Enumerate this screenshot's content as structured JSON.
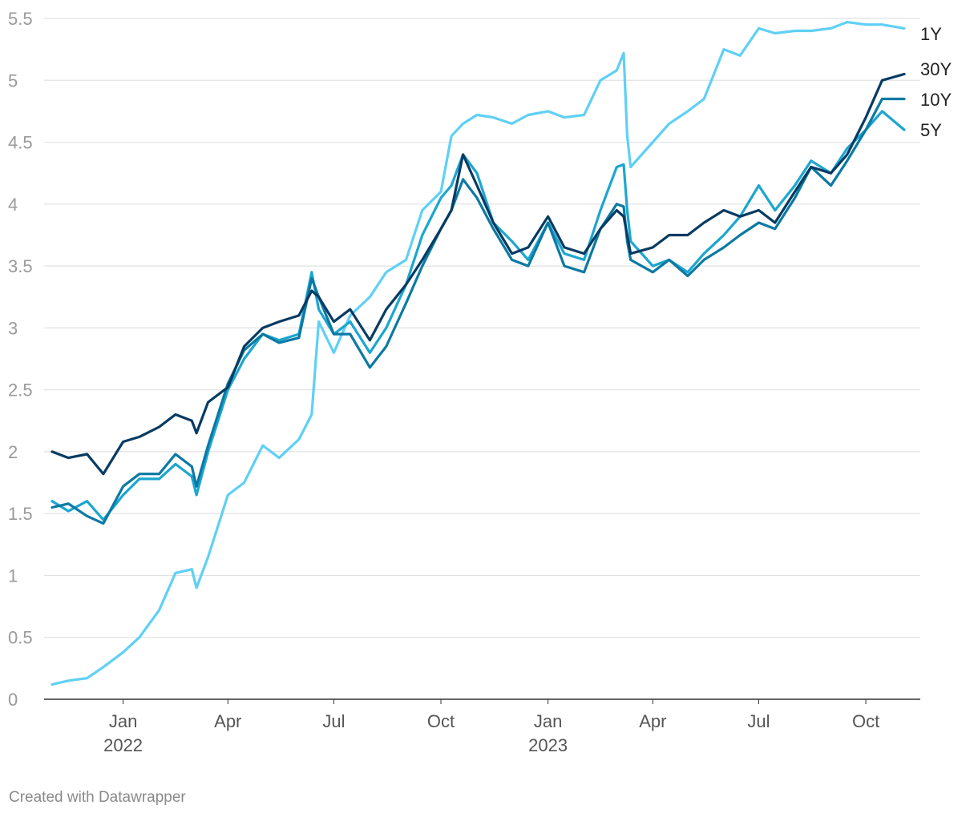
{
  "footer": "Created with Datawrapper",
  "chart_data": {
    "type": "line",
    "title": "",
    "xlabel": "",
    "ylabel": "",
    "xlim": [
      "2021-11-01",
      "2023-11-03"
    ],
    "ylim": [
      0,
      5.5
    ],
    "y_ticks": [
      {
        "value": 0,
        "label": "0"
      },
      {
        "value": 0.5,
        "label": "0.5"
      },
      {
        "value": 1,
        "label": "1"
      },
      {
        "value": 1.5,
        "label": "1.5"
      },
      {
        "value": 2,
        "label": "2"
      },
      {
        "value": 2.5,
        "label": "2.5"
      },
      {
        "value": 3,
        "label": "3"
      },
      {
        "value": 3.5,
        "label": "3.5"
      },
      {
        "value": 4,
        "label": "4"
      },
      {
        "value": 4.5,
        "label": "4.5"
      },
      {
        "value": 5,
        "label": "5"
      },
      {
        "value": 5.5,
        "label": "5.5"
      }
    ],
    "x_ticks": [
      {
        "date": "2022-01-01",
        "label": "Jan",
        "sublabel": "2022"
      },
      {
        "date": "2022-04-01",
        "label": "Apr",
        "sublabel": ""
      },
      {
        "date": "2022-07-01",
        "label": "Jul",
        "sublabel": ""
      },
      {
        "date": "2022-10-01",
        "label": "Oct",
        "sublabel": ""
      },
      {
        "date": "2023-01-01",
        "label": "Jan",
        "sublabel": "2023"
      },
      {
        "date": "2023-04-01",
        "label": "Apr",
        "sublabel": ""
      },
      {
        "date": "2023-07-01",
        "label": "Jul",
        "sublabel": ""
      },
      {
        "date": "2023-10-01",
        "label": "Oct",
        "sublabel": ""
      }
    ],
    "grid": true,
    "legend": "direct labels at right end of lines",
    "series": [
      {
        "name": "1Y",
        "color": "#5fd0f5",
        "points": [
          [
            "2021-11-01",
            0.12
          ],
          [
            "2021-11-15",
            0.15
          ],
          [
            "2021-12-01",
            0.17
          ],
          [
            "2021-12-15",
            0.26
          ],
          [
            "2022-01-01",
            0.38
          ],
          [
            "2022-01-15",
            0.5
          ],
          [
            "2022-02-01",
            0.72
          ],
          [
            "2022-02-15",
            1.02
          ],
          [
            "2022-03-01",
            1.05
          ],
          [
            "2022-03-05",
            0.9
          ],
          [
            "2022-03-15",
            1.15
          ],
          [
            "2022-04-01",
            1.65
          ],
          [
            "2022-04-15",
            1.75
          ],
          [
            "2022-05-01",
            2.05
          ],
          [
            "2022-05-15",
            1.95
          ],
          [
            "2022-06-01",
            2.1
          ],
          [
            "2022-06-12",
            2.3
          ],
          [
            "2022-06-18",
            3.05
          ],
          [
            "2022-07-01",
            2.8
          ],
          [
            "2022-07-15",
            3.1
          ],
          [
            "2022-08-01",
            3.25
          ],
          [
            "2022-08-15",
            3.45
          ],
          [
            "2022-09-01",
            3.55
          ],
          [
            "2022-09-15",
            3.95
          ],
          [
            "2022-10-01",
            4.1
          ],
          [
            "2022-10-10",
            4.55
          ],
          [
            "2022-10-20",
            4.65
          ],
          [
            "2022-11-01",
            4.72
          ],
          [
            "2022-11-15",
            4.7
          ],
          [
            "2022-12-01",
            4.65
          ],
          [
            "2022-12-15",
            4.72
          ],
          [
            "2023-01-01",
            4.75
          ],
          [
            "2023-01-15",
            4.7
          ],
          [
            "2023-02-01",
            4.72
          ],
          [
            "2023-02-15",
            5.0
          ],
          [
            "2023-03-01",
            5.08
          ],
          [
            "2023-03-07",
            5.22
          ],
          [
            "2023-03-10",
            4.55
          ],
          [
            "2023-03-13",
            4.3
          ],
          [
            "2023-04-01",
            4.5
          ],
          [
            "2023-04-15",
            4.65
          ],
          [
            "2023-05-01",
            4.75
          ],
          [
            "2023-05-15",
            4.85
          ],
          [
            "2023-06-01",
            5.25
          ],
          [
            "2023-06-15",
            5.2
          ],
          [
            "2023-07-01",
            5.42
          ],
          [
            "2023-07-15",
            5.38
          ],
          [
            "2023-08-01",
            5.4
          ],
          [
            "2023-08-15",
            5.4
          ],
          [
            "2023-09-01",
            5.42
          ],
          [
            "2023-09-15",
            5.47
          ],
          [
            "2023-10-01",
            5.45
          ],
          [
            "2023-10-15",
            5.45
          ],
          [
            "2023-11-03",
            5.42
          ]
        ]
      },
      {
        "name": "5Y",
        "color": "#1ca6d0",
        "points": [
          [
            "2021-11-01",
            1.6
          ],
          [
            "2021-11-15",
            1.52
          ],
          [
            "2021-12-01",
            1.6
          ],
          [
            "2021-12-15",
            1.45
          ],
          [
            "2022-01-01",
            1.65
          ],
          [
            "2022-01-15",
            1.78
          ],
          [
            "2022-02-01",
            1.78
          ],
          [
            "2022-02-15",
            1.9
          ],
          [
            "2022-03-01",
            1.8
          ],
          [
            "2022-03-05",
            1.65
          ],
          [
            "2022-03-15",
            2.0
          ],
          [
            "2022-04-01",
            2.5
          ],
          [
            "2022-04-15",
            2.75
          ],
          [
            "2022-05-01",
            2.95
          ],
          [
            "2022-05-15",
            2.9
          ],
          [
            "2022-06-01",
            2.95
          ],
          [
            "2022-06-12",
            3.45
          ],
          [
            "2022-06-18",
            3.15
          ],
          [
            "2022-07-01",
            2.95
          ],
          [
            "2022-07-15",
            3.05
          ],
          [
            "2022-08-01",
            2.8
          ],
          [
            "2022-08-15",
            3.0
          ],
          [
            "2022-09-01",
            3.35
          ],
          [
            "2022-09-15",
            3.75
          ],
          [
            "2022-10-01",
            4.05
          ],
          [
            "2022-10-10",
            4.15
          ],
          [
            "2022-10-20",
            4.4
          ],
          [
            "2022-11-01",
            4.25
          ],
          [
            "2022-11-15",
            3.85
          ],
          [
            "2022-12-01",
            3.7
          ],
          [
            "2022-12-15",
            3.55
          ],
          [
            "2023-01-01",
            3.85
          ],
          [
            "2023-01-15",
            3.6
          ],
          [
            "2023-02-01",
            3.55
          ],
          [
            "2023-02-15",
            3.95
          ],
          [
            "2023-03-01",
            4.3
          ],
          [
            "2023-03-07",
            4.32
          ],
          [
            "2023-03-10",
            3.95
          ],
          [
            "2023-03-13",
            3.7
          ],
          [
            "2023-04-01",
            3.5
          ],
          [
            "2023-04-15",
            3.55
          ],
          [
            "2023-05-01",
            3.45
          ],
          [
            "2023-05-15",
            3.6
          ],
          [
            "2023-06-01",
            3.75
          ],
          [
            "2023-06-15",
            3.9
          ],
          [
            "2023-07-01",
            4.15
          ],
          [
            "2023-07-15",
            3.95
          ],
          [
            "2023-08-01",
            4.15
          ],
          [
            "2023-08-15",
            4.35
          ],
          [
            "2023-09-01",
            4.25
          ],
          [
            "2023-09-15",
            4.45
          ],
          [
            "2023-10-01",
            4.6
          ],
          [
            "2023-10-15",
            4.75
          ],
          [
            "2023-11-03",
            4.6
          ]
        ]
      },
      {
        "name": "10Y",
        "color": "#0b7aa3",
        "points": [
          [
            "2021-11-01",
            1.55
          ],
          [
            "2021-11-15",
            1.58
          ],
          [
            "2021-12-01",
            1.48
          ],
          [
            "2021-12-15",
            1.42
          ],
          [
            "2022-01-01",
            1.72
          ],
          [
            "2022-01-15",
            1.82
          ],
          [
            "2022-02-01",
            1.82
          ],
          [
            "2022-02-15",
            1.98
          ],
          [
            "2022-03-01",
            1.88
          ],
          [
            "2022-03-05",
            1.72
          ],
          [
            "2022-03-15",
            2.05
          ],
          [
            "2022-04-01",
            2.55
          ],
          [
            "2022-04-15",
            2.82
          ],
          [
            "2022-05-01",
            2.95
          ],
          [
            "2022-05-15",
            2.88
          ],
          [
            "2022-06-01",
            2.92
          ],
          [
            "2022-06-12",
            3.4
          ],
          [
            "2022-06-18",
            3.25
          ],
          [
            "2022-07-01",
            2.95
          ],
          [
            "2022-07-15",
            2.95
          ],
          [
            "2022-08-01",
            2.68
          ],
          [
            "2022-08-15",
            2.85
          ],
          [
            "2022-09-01",
            3.2
          ],
          [
            "2022-09-15",
            3.5
          ],
          [
            "2022-10-01",
            3.8
          ],
          [
            "2022-10-10",
            3.95
          ],
          [
            "2022-10-20",
            4.2
          ],
          [
            "2022-11-01",
            4.05
          ],
          [
            "2022-11-15",
            3.8
          ],
          [
            "2022-12-01",
            3.55
          ],
          [
            "2022-12-15",
            3.5
          ],
          [
            "2023-01-01",
            3.85
          ],
          [
            "2023-01-15",
            3.5
          ],
          [
            "2023-02-01",
            3.45
          ],
          [
            "2023-02-15",
            3.8
          ],
          [
            "2023-03-01",
            4.0
          ],
          [
            "2023-03-07",
            3.98
          ],
          [
            "2023-03-10",
            3.7
          ],
          [
            "2023-03-13",
            3.55
          ],
          [
            "2023-04-01",
            3.45
          ],
          [
            "2023-04-15",
            3.55
          ],
          [
            "2023-05-01",
            3.42
          ],
          [
            "2023-05-15",
            3.55
          ],
          [
            "2023-06-01",
            3.65
          ],
          [
            "2023-06-15",
            3.75
          ],
          [
            "2023-07-01",
            3.85
          ],
          [
            "2023-07-15",
            3.8
          ],
          [
            "2023-08-01",
            4.05
          ],
          [
            "2023-08-15",
            4.3
          ],
          [
            "2023-09-01",
            4.15
          ],
          [
            "2023-09-15",
            4.35
          ],
          [
            "2023-10-01",
            4.6
          ],
          [
            "2023-10-15",
            4.85
          ],
          [
            "2023-11-03",
            4.85
          ]
        ]
      },
      {
        "name": "30Y",
        "color": "#073b63",
        "points": [
          [
            "2021-11-01",
            2.0
          ],
          [
            "2021-11-15",
            1.95
          ],
          [
            "2021-12-01",
            1.98
          ],
          [
            "2021-12-15",
            1.82
          ],
          [
            "2022-01-01",
            2.08
          ],
          [
            "2022-01-15",
            2.12
          ],
          [
            "2022-02-01",
            2.2
          ],
          [
            "2022-02-15",
            2.3
          ],
          [
            "2022-03-01",
            2.25
          ],
          [
            "2022-03-05",
            2.15
          ],
          [
            "2022-03-15",
            2.4
          ],
          [
            "2022-04-01",
            2.52
          ],
          [
            "2022-04-15",
            2.85
          ],
          [
            "2022-05-01",
            3.0
          ],
          [
            "2022-05-15",
            3.05
          ],
          [
            "2022-06-01",
            3.1
          ],
          [
            "2022-06-12",
            3.3
          ],
          [
            "2022-06-18",
            3.25
          ],
          [
            "2022-07-01",
            3.05
          ],
          [
            "2022-07-15",
            3.15
          ],
          [
            "2022-08-01",
            2.9
          ],
          [
            "2022-08-15",
            3.15
          ],
          [
            "2022-09-01",
            3.35
          ],
          [
            "2022-09-15",
            3.55
          ],
          [
            "2022-10-01",
            3.8
          ],
          [
            "2022-10-10",
            3.95
          ],
          [
            "2022-10-20",
            4.4
          ],
          [
            "2022-11-01",
            4.15
          ],
          [
            "2022-11-15",
            3.85
          ],
          [
            "2022-12-01",
            3.6
          ],
          [
            "2022-12-15",
            3.65
          ],
          [
            "2023-01-01",
            3.9
          ],
          [
            "2023-01-15",
            3.65
          ],
          [
            "2023-02-01",
            3.6
          ],
          [
            "2023-02-15",
            3.8
          ],
          [
            "2023-03-01",
            3.95
          ],
          [
            "2023-03-07",
            3.9
          ],
          [
            "2023-03-10",
            3.75
          ],
          [
            "2023-03-13",
            3.6
          ],
          [
            "2023-04-01",
            3.65
          ],
          [
            "2023-04-15",
            3.75
          ],
          [
            "2023-05-01",
            3.75
          ],
          [
            "2023-05-15",
            3.85
          ],
          [
            "2023-06-01",
            3.95
          ],
          [
            "2023-06-15",
            3.9
          ],
          [
            "2023-07-01",
            3.95
          ],
          [
            "2023-07-15",
            3.85
          ],
          [
            "2023-08-01",
            4.1
          ],
          [
            "2023-08-15",
            4.3
          ],
          [
            "2023-09-01",
            4.25
          ],
          [
            "2023-09-15",
            4.4
          ],
          [
            "2023-10-01",
            4.7
          ],
          [
            "2023-10-15",
            5.0
          ],
          [
            "2023-11-03",
            5.05
          ]
        ]
      }
    ]
  }
}
